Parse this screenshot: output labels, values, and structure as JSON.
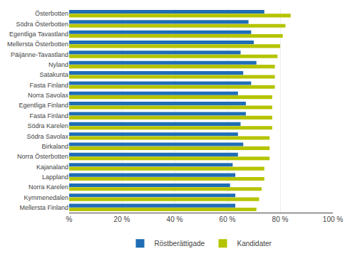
{
  "chart_data": {
    "type": "bar",
    "orientation": "horizontal",
    "categories": [
      "Österbotten",
      "Södra Österbotten",
      "Egentliga Tavastland",
      "Mellersta Österbotten",
      "Päijänne-Tavastland",
      "Nyland",
      "Satakunta",
      "Fasta Finland",
      "Norra Savolax",
      "Egentliga Finland",
      "Fasta Finland",
      "Södra Karelen",
      "Södra Savolax",
      "Birkaland",
      "Norra Österbotten",
      "Kajanaland",
      "Lappland",
      "Norra Karelen",
      "Kymmenedalen",
      "Mellersta Finland"
    ],
    "series": [
      {
        "name": "Röstberättigade",
        "color": "#1f6db5",
        "values": [
          74,
          68,
          69,
          70,
          65,
          71,
          66,
          69,
          64,
          67,
          67,
          65,
          64,
          66,
          64,
          62,
          63,
          61,
          63,
          63
        ]
      },
      {
        "name": "Kandidater",
        "color": "#b5c400",
        "values": [
          84,
          82,
          81,
          80,
          79,
          78,
          78,
          78,
          77,
          77,
          77,
          77,
          76,
          76,
          76,
          74,
          74,
          73,
          72,
          71
        ]
      }
    ],
    "xlim": [
      0,
      100
    ],
    "xticks": [
      {
        "value": 0,
        "label": "%"
      },
      {
        "value": 20,
        "label": "20 %"
      },
      {
        "value": 40,
        "label": "40 %"
      },
      {
        "value": 60,
        "label": "60 %"
      },
      {
        "value": 80,
        "label": "80 %"
      },
      {
        "value": 100,
        "label": "100 %"
      }
    ],
    "grid": true,
    "legend": "bottom"
  }
}
